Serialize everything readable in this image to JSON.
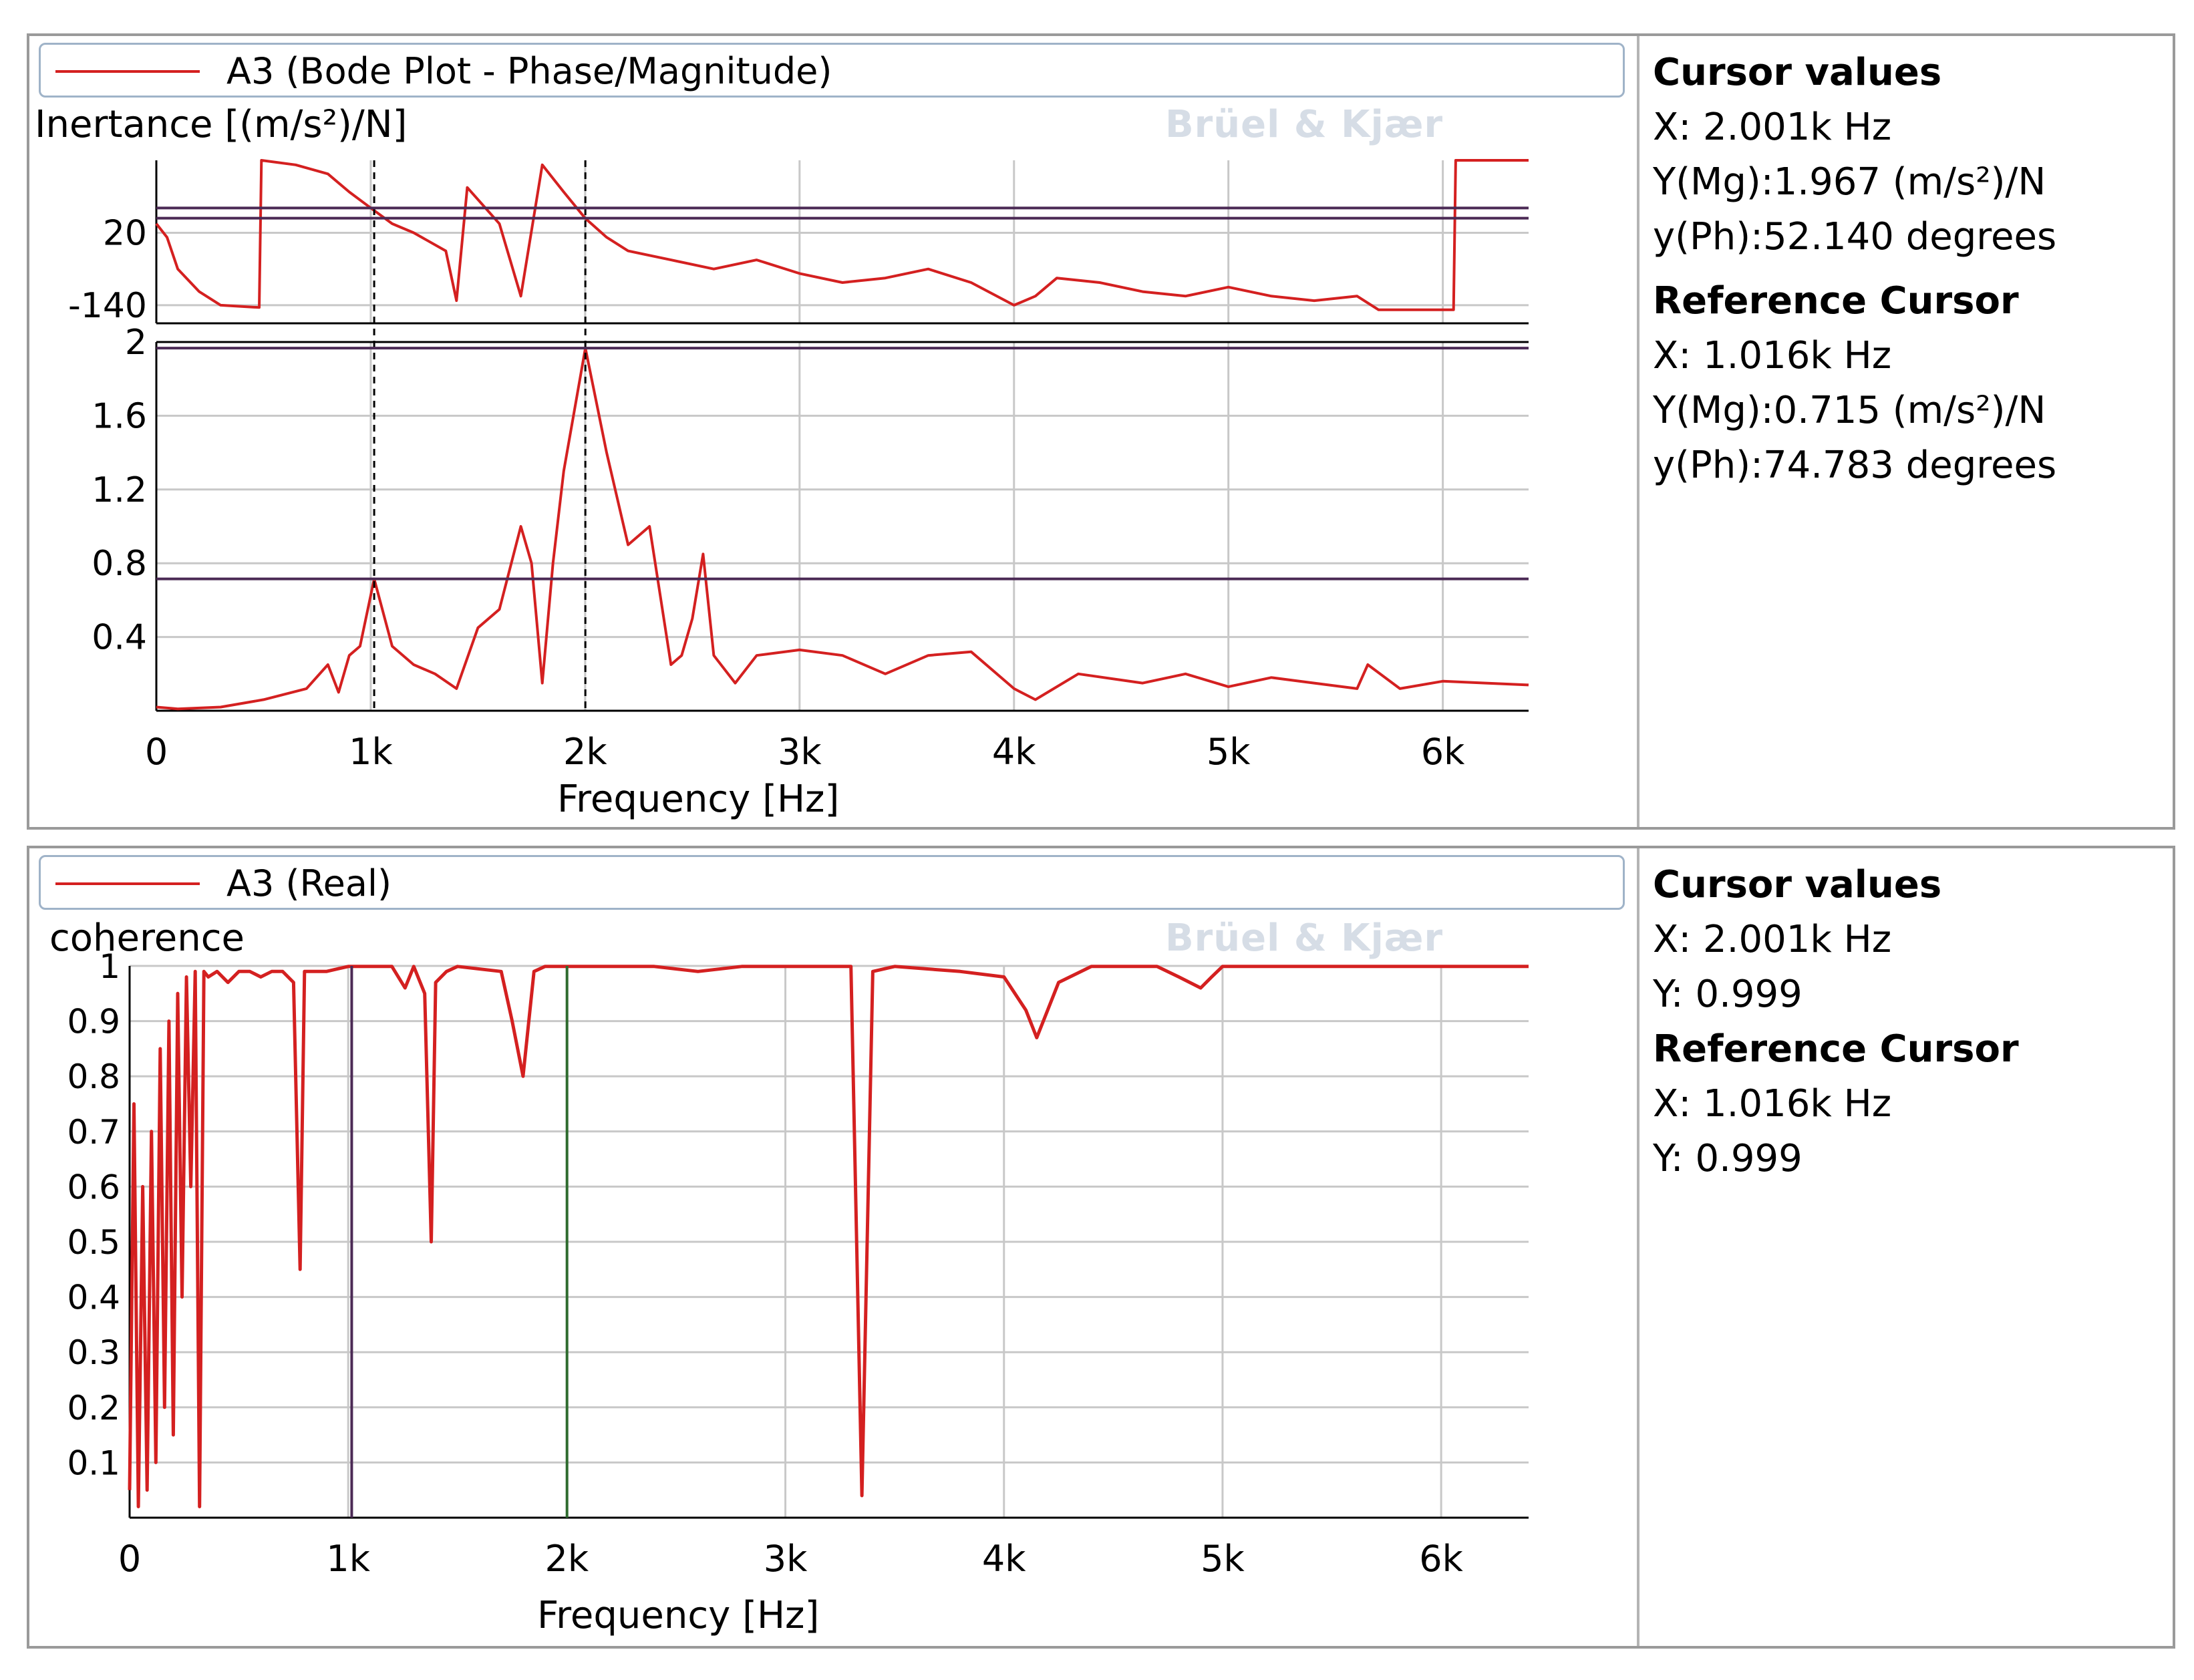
{
  "top_panel": {
    "legend": "A3 (Bode Plot - Phase/Magnitude)",
    "ylabel": "Inertance [(m/s²)/N]",
    "xlabel": "Frequency [Hz]",
    "watermark": "Brüel & Kjær",
    "cursor_heading": "Cursor values",
    "cursor_x": "X: 2.001k Hz",
    "cursor_ymg": "Y(Mg):1.967 (m/s²)/N",
    "cursor_yph": "y(Ph):52.140 degrees",
    "ref_heading": "Reference Cursor",
    "ref_x": "X: 1.016k Hz",
    "ref_ymg": "Y(Mg):0.715 (m/s²)/N",
    "ref_yph": "y(Ph):74.783 degrees"
  },
  "bottom_panel": {
    "legend": "A3 (Real)",
    "ylabel": "coherence",
    "xlabel": "Frequency [Hz]",
    "watermark": "Brüel & Kjær",
    "cursor_heading": "Cursor values",
    "cursor_x": "X: 2.001k Hz",
    "cursor_y": "Y: 0.999",
    "ref_heading": "Reference Cursor",
    "ref_x": "X: 1.016k Hz",
    "ref_y": "Y: 0.999"
  },
  "colors": {
    "trace": "#d42020",
    "grid": "#c8c8c8",
    "cursor_line": "#4b2a55",
    "cursor2_line": "#2e6b2e",
    "axis": "#000000"
  },
  "chart_data": [
    {
      "type": "line",
      "name": "phase",
      "title": "",
      "xlabel": "Frequency [Hz]",
      "ylabel": "Inertance [(m/s²)/N]",
      "xlim": [
        0,
        6400
      ],
      "ylim": [
        -180,
        180
      ],
      "x_ticks": [
        0,
        1000,
        2000,
        3000,
        4000,
        5000,
        6000
      ],
      "x_tick_labels": [
        "0",
        "1k",
        "2k",
        "3k",
        "4k",
        "5k",
        "6k"
      ],
      "y_ticks": [
        20,
        -140
      ],
      "y_tick_labels": [
        "20",
        "-140"
      ],
      "grid": true,
      "series": [
        {
          "x": [
            0,
            50,
            100,
            200,
            300,
            480,
            490,
            650,
            800,
            900,
            1000,
            1100,
            1200,
            1350,
            1400,
            1450,
            1600,
            1700,
            1800,
            1900,
            2000,
            2100,
            2200,
            2400,
            2600,
            2800,
            3000,
            3200,
            3400,
            3600,
            3800,
            4000,
            4100,
            4200,
            4400,
            4600,
            4800,
            5000,
            5200,
            5400,
            5600,
            5700,
            5900,
            6050,
            6060,
            6400
          ],
          "y": [
            40,
            10,
            -60,
            -110,
            -140,
            -145,
            180,
            170,
            150,
            110,
            74.8,
            40,
            20,
            -20,
            -130,
            120,
            40,
            -120,
            170,
            110,
            52.1,
            10,
            -20,
            -40,
            -60,
            -40,
            -70,
            -90,
            -80,
            -60,
            -90,
            -140,
            -120,
            -80,
            -90,
            -110,
            -120,
            -100,
            -120,
            -130,
            -120,
            -150,
            -150,
            -150,
            180,
            180
          ]
        }
      ]
    },
    {
      "type": "line",
      "name": "magnitude",
      "title": "",
      "xlabel": "Frequency [Hz]",
      "ylabel": "Inertance [(m/s²)/N]",
      "xlim": [
        0,
        6400
      ],
      "ylim": [
        0,
        2
      ],
      "x_ticks": [
        0,
        1000,
        2000,
        3000,
        4000,
        5000,
        6000
      ],
      "x_tick_labels": [
        "0",
        "1k",
        "2k",
        "3k",
        "4k",
        "5k",
        "6k"
      ],
      "y_ticks": [
        0.4,
        0.8,
        1.2,
        1.6,
        2
      ],
      "y_tick_labels": [
        "0.4",
        "0.8",
        "1.2",
        "1.6",
        "2"
      ],
      "grid": true,
      "series": [
        {
          "x": [
            0,
            100,
            300,
            500,
            700,
            800,
            850,
            900,
            950,
            1016,
            1100,
            1200,
            1300,
            1400,
            1500,
            1600,
            1700,
            1750,
            1800,
            1850,
            1900,
            2001,
            2100,
            2200,
            2300,
            2400,
            2450,
            2500,
            2550,
            2600,
            2700,
            2800,
            3000,
            3200,
            3400,
            3600,
            3800,
            4000,
            4100,
            4300,
            4600,
            4800,
            5000,
            5200,
            5400,
            5600,
            5650,
            5800,
            6000,
            6200,
            6400
          ],
          "y": [
            0.02,
            0.01,
            0.02,
            0.06,
            0.12,
            0.25,
            0.1,
            0.3,
            0.35,
            0.715,
            0.35,
            0.25,
            0.2,
            0.12,
            0.45,
            0.55,
            1.0,
            0.8,
            0.15,
            0.8,
            1.3,
            1.967,
            1.4,
            0.9,
            1.0,
            0.25,
            0.3,
            0.5,
            0.85,
            0.3,
            0.15,
            0.3,
            0.33,
            0.3,
            0.2,
            0.3,
            0.32,
            0.12,
            0.06,
            0.2,
            0.15,
            0.2,
            0.13,
            0.18,
            0.15,
            0.12,
            0.25,
            0.12,
            0.16,
            0.15,
            0.14
          ]
        }
      ],
      "cursors": {
        "cursor_x": 2001,
        "cursor_y": 1.967,
        "reference_x": 1016,
        "reference_y": 0.715
      }
    },
    {
      "type": "line",
      "name": "coherence",
      "title": "",
      "xlabel": "Frequency [Hz]",
      "ylabel": "coherence",
      "xlim": [
        0,
        6400
      ],
      "ylim": [
        0,
        1
      ],
      "x_ticks": [
        0,
        1000,
        2000,
        3000,
        4000,
        5000,
        6000
      ],
      "x_tick_labels": [
        "0",
        "1k",
        "2k",
        "3k",
        "4k",
        "5k",
        "6k"
      ],
      "y_ticks": [
        0.1,
        0.2,
        0.3,
        0.4,
        0.5,
        0.6,
        0.7,
        0.8,
        0.9,
        1
      ],
      "y_tick_labels": [
        "0.1",
        "0.2",
        "0.3",
        "0.4",
        "0.5",
        "0.6",
        "0.7",
        "0.8",
        "0.9",
        "1"
      ],
      "grid": true,
      "series": [
        {
          "x": [
            0,
            20,
            40,
            60,
            80,
            100,
            120,
            140,
            160,
            180,
            200,
            220,
            240,
            260,
            280,
            300,
            320,
            340,
            360,
            400,
            450,
            500,
            550,
            600,
            650,
            700,
            750,
            780,
            800,
            820,
            900,
            1000,
            1200,
            1260,
            1300,
            1350,
            1380,
            1400,
            1450,
            1500,
            1700,
            1750,
            1800,
            1850,
            1900,
            2000,
            2400,
            2600,
            2800,
            3000,
            3200,
            3300,
            3350,
            3400,
            3500,
            3800,
            4000,
            4100,
            4150,
            4200,
            4250,
            4400,
            4700,
            4800,
            4900,
            4950,
            5000,
            5200,
            5600,
            6000,
            6400
          ],
          "y": [
            0.05,
            0.75,
            0.02,
            0.6,
            0.05,
            0.7,
            0.1,
            0.85,
            0.2,
            0.9,
            0.15,
            0.95,
            0.4,
            0.98,
            0.6,
            0.99,
            0.02,
            0.99,
            0.98,
            0.99,
            0.97,
            0.99,
            0.99,
            0.98,
            0.99,
            0.99,
            0.97,
            0.45,
            0.99,
            0.99,
            0.99,
            0.999,
            0.999,
            0.96,
            0.999,
            0.95,
            0.5,
            0.97,
            0.99,
            0.999,
            0.99,
            0.9,
            0.8,
            0.99,
            0.999,
            0.999,
            0.999,
            0.99,
            0.999,
            0.999,
            0.999,
            0.999,
            0.04,
            0.99,
            0.999,
            0.99,
            0.98,
            0.92,
            0.87,
            0.92,
            0.97,
            0.999,
            0.999,
            0.98,
            0.96,
            0.98,
            0.999,
            0.999,
            0.999,
            0.999,
            0.999
          ]
        }
      ],
      "cursors": {
        "cursor_x": 2001,
        "cursor_y": 0.999,
        "reference_x": 1016,
        "reference_y": 0.999
      }
    }
  ]
}
